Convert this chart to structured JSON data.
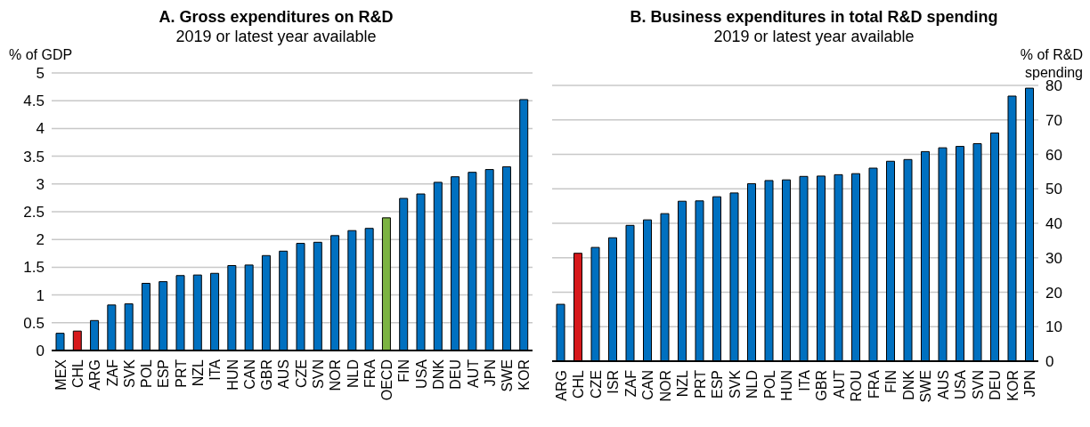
{
  "chart_data": [
    {
      "type": "bar",
      "title": "A. Gross expenditures on R&D",
      "subtitle": "2019 or latest year available",
      "ylabel": "% of GDP",
      "categories": [
        "MEX",
        "CHL",
        "ARG",
        "ZAF",
        "SVK",
        "POL",
        "ESP",
        "PRT",
        "NZL",
        "ITA",
        "HUN",
        "CAN",
        "GBR",
        "AUS",
        "CZE",
        "SVN",
        "NOR",
        "NLD",
        "FRA",
        "OECD",
        "FIN",
        "USA",
        "DNK",
        "DEU",
        "AUT",
        "JPN",
        "SWE",
        "KOR"
      ],
      "values": [
        0.31,
        0.35,
        0.54,
        0.82,
        0.84,
        1.21,
        1.24,
        1.35,
        1.36,
        1.39,
        1.53,
        1.54,
        1.71,
        1.79,
        1.93,
        1.95,
        2.07,
        2.16,
        2.2,
        2.39,
        2.74,
        2.82,
        3.03,
        3.13,
        3.21,
        3.26,
        3.31,
        4.52
      ],
      "colors": [
        "#0070c0",
        "#d7191c",
        "#0070c0",
        "#0070c0",
        "#0070c0",
        "#0070c0",
        "#0070c0",
        "#0070c0",
        "#0070c0",
        "#0070c0",
        "#0070c0",
        "#0070c0",
        "#0070c0",
        "#0070c0",
        "#0070c0",
        "#0070c0",
        "#0070c0",
        "#0070c0",
        "#0070c0",
        "#7cb342",
        "#0070c0",
        "#0070c0",
        "#0070c0",
        "#0070c0",
        "#0070c0",
        "#0070c0",
        "#0070c0",
        "#0070c0"
      ],
      "ylim": [
        0,
        5
      ],
      "yticks": [
        0,
        0.5,
        1,
        1.5,
        2,
        2.5,
        3,
        3.5,
        4,
        4.5,
        5
      ],
      "grid": "y"
    },
    {
      "type": "bar",
      "title": "B. Business expenditures in total R&D spending",
      "subtitle": "2019 or latest year available",
      "y2label": "% of  R&D spending",
      "categories": [
        "ARG",
        "CHL",
        "CZE",
        "ISR",
        "ZAF",
        "CAN",
        "NOR",
        "NZL",
        "PRT",
        "ESP",
        "SVK",
        "NLD",
        "POL",
        "HUN",
        "ITA",
        "GBR",
        "AUT",
        "ROU",
        "FRA",
        "FIN",
        "DNK",
        "SWE",
        "AUS",
        "USA",
        "SVN",
        "DEU",
        "KOR",
        "JPN"
      ],
      "series": [
        {
          "axis": "y2",
          "values": [
            16.5,
            31.3,
            33,
            35.8,
            39.4,
            41,
            42.8,
            46.4,
            46.5,
            47.7,
            48.8,
            51.5,
            52.4,
            52.6,
            53.6,
            53.7,
            54.1,
            54.4,
            56,
            58,
            58.5,
            60.8,
            61.9,
            62.3,
            63.1,
            66.2,
            76.9,
            79.2
          ],
          "colors": [
            "#0070c0",
            "#d7191c",
            "#0070c0",
            "#0070c0",
            "#0070c0",
            "#0070c0",
            "#0070c0",
            "#0070c0",
            "#0070c0",
            "#0070c0",
            "#0070c0",
            "#0070c0",
            "#0070c0",
            "#0070c0",
            "#0070c0",
            "#0070c0",
            "#0070c0",
            "#0070c0",
            "#0070c0",
            "#0070c0",
            "#0070c0",
            "#0070c0",
            "#0070c0",
            "#0070c0",
            "#0070c0",
            "#0070c0",
            "#0070c0",
            "#0070c0"
          ]
        }
      ],
      "y2lim": [
        0,
        80
      ],
      "y2ticks": [
        0,
        10,
        20,
        30,
        40,
        50,
        60,
        70,
        80
      ],
      "grid": "y"
    }
  ]
}
